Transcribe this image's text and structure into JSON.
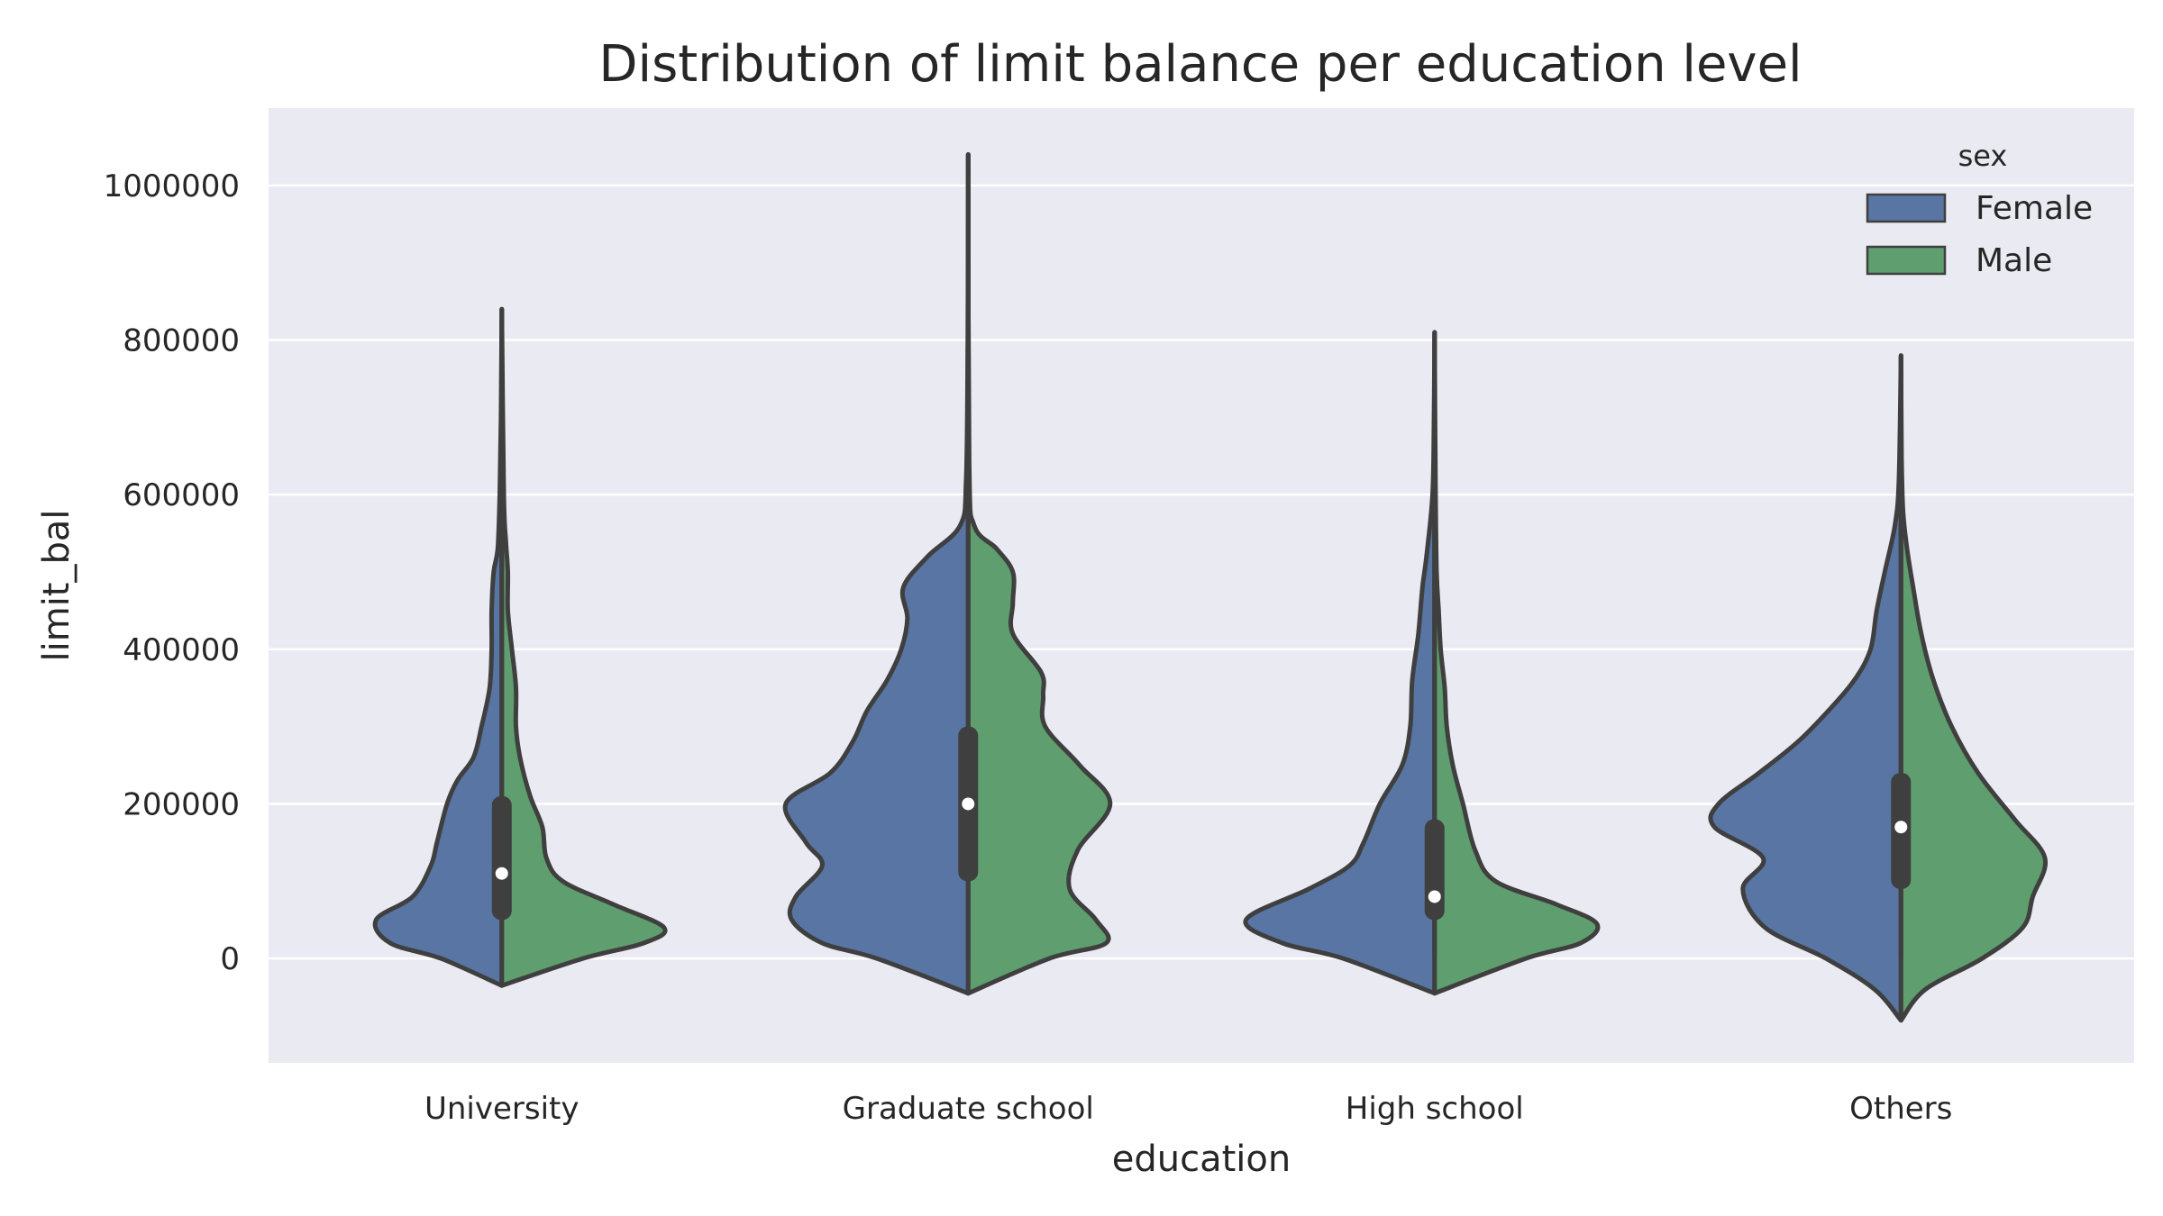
{
  "chart_data": {
    "type": "violin",
    "title": "Distribution of limit balance per education level",
    "xlabel": "education",
    "ylabel": "limit_bal",
    "categories": [
      "University",
      "Graduate school",
      "High school",
      "Others"
    ],
    "yticks": [
      0,
      200000,
      400000,
      600000,
      800000,
      1000000
    ],
    "ylim": [
      -135000,
      1100000
    ],
    "grid": true,
    "split": true,
    "legend": {
      "title": "sex",
      "placement": "top-right",
      "entries": [
        {
          "name": "Female",
          "color": "#5875a4"
        },
        {
          "name": "Male",
          "color": "#5f9e6e"
        }
      ]
    },
    "series": [
      {
        "name": "Female",
        "color": "#5875a4",
        "violins": [
          {
            "category": "University",
            "profile": [
              [
                -35000,
                0.0
              ],
              [
                0,
                0.3
              ],
              [
                20000,
                0.55
              ],
              [
                50000,
                0.62
              ],
              [
                80000,
                0.44
              ],
              [
                120000,
                0.35
              ],
              [
                150000,
                0.32
              ],
              [
                200000,
                0.27
              ],
              [
                230000,
                0.22
              ],
              [
                260000,
                0.14
              ],
              [
                300000,
                0.1
              ],
              [
                350000,
                0.06
              ],
              [
                400000,
                0.05
              ],
              [
                450000,
                0.05
              ],
              [
                500000,
                0.04
              ],
              [
                530000,
                0.02
              ],
              [
                600000,
                0.01
              ],
              [
                700000,
                0.004
              ],
              [
                840000,
                0.0
              ]
            ]
          },
          {
            "category": "Graduate school",
            "profile": [
              [
                -45000,
                0.0
              ],
              [
                0,
                0.45
              ],
              [
                20000,
                0.72
              ],
              [
                50000,
                0.87
              ],
              [
                80000,
                0.85
              ],
              [
                120000,
                0.72
              ],
              [
                150000,
                0.8
              ],
              [
                200000,
                0.9
              ],
              [
                240000,
                0.68
              ],
              [
                280000,
                0.57
              ],
              [
                320000,
                0.5
              ],
              [
                360000,
                0.4
              ],
              [
                400000,
                0.33
              ],
              [
                440000,
                0.3
              ],
              [
                480000,
                0.32
              ],
              [
                520000,
                0.2
              ],
              [
                560000,
                0.04
              ],
              [
                620000,
                0.01
              ],
              [
                800000,
                0.002
              ],
              [
                1040000,
                0.0
              ]
            ]
          },
          {
            "category": "High school",
            "profile": [
              [
                -45000,
                0.0
              ],
              [
                0,
                0.45
              ],
              [
                20000,
                0.75
              ],
              [
                50000,
                0.93
              ],
              [
                90000,
                0.62
              ],
              [
                120000,
                0.42
              ],
              [
                150000,
                0.35
              ],
              [
                200000,
                0.27
              ],
              [
                250000,
                0.16
              ],
              [
                300000,
                0.12
              ],
              [
                360000,
                0.11
              ],
              [
                420000,
                0.08
              ],
              [
                480000,
                0.06
              ],
              [
                520000,
                0.04
              ],
              [
                600000,
                0.01
              ],
              [
                700000,
                0.003
              ],
              [
                810000,
                0.0
              ]
            ]
          },
          {
            "category": "Others",
            "profile": [
              [
                -80000,
                0.0
              ],
              [
                -40000,
                0.13
              ],
              [
                0,
                0.37
              ],
              [
                40000,
                0.67
              ],
              [
                90000,
                0.78
              ],
              [
                130000,
                0.68
              ],
              [
                170000,
                0.92
              ],
              [
                200000,
                0.9
              ],
              [
                240000,
                0.7
              ],
              [
                280000,
                0.51
              ],
              [
                320000,
                0.36
              ],
              [
                360000,
                0.23
              ],
              [
                400000,
                0.15
              ],
              [
                450000,
                0.12
              ],
              [
                500000,
                0.08
              ],
              [
                560000,
                0.03
              ],
              [
                620000,
                0.01
              ],
              [
                780000,
                0.0
              ]
            ]
          }
        ]
      },
      {
        "name": "Male",
        "color": "#5f9e6e",
        "violins": [
          {
            "category": "University",
            "profile": [
              [
                -35000,
                0.0
              ],
              [
                0,
                0.4
              ],
              [
                20000,
                0.7
              ],
              [
                40000,
                0.8
              ],
              [
                70000,
                0.55
              ],
              [
                100000,
                0.3
              ],
              [
                130000,
                0.22
              ],
              [
                170000,
                0.2
              ],
              [
                210000,
                0.14
              ],
              [
                260000,
                0.09
              ],
              [
                300000,
                0.07
              ],
              [
                350000,
                0.07
              ],
              [
                400000,
                0.05
              ],
              [
                450000,
                0.03
              ],
              [
                500000,
                0.03
              ],
              [
                540000,
                0.02
              ],
              [
                600000,
                0.01
              ],
              [
                840000,
                0.0
              ]
            ]
          },
          {
            "category": "Graduate school",
            "profile": [
              [
                -45000,
                0.0
              ],
              [
                0,
                0.4
              ],
              [
                20000,
                0.68
              ],
              [
                50000,
                0.63
              ],
              [
                90000,
                0.5
              ],
              [
                140000,
                0.54
              ],
              [
                200000,
                0.7
              ],
              [
                250000,
                0.55
              ],
              [
                300000,
                0.38
              ],
              [
                340000,
                0.37
              ],
              [
                370000,
                0.36
              ],
              [
                420000,
                0.22
              ],
              [
                460000,
                0.22
              ],
              [
                500000,
                0.22
              ],
              [
                530000,
                0.14
              ],
              [
                560000,
                0.03
              ],
              [
                640000,
                0.005
              ],
              [
                1040000,
                0.0
              ]
            ]
          },
          {
            "category": "High school",
            "profile": [
              [
                -45000,
                0.0
              ],
              [
                0,
                0.45
              ],
              [
                20000,
                0.72
              ],
              [
                45000,
                0.8
              ],
              [
                70000,
                0.6
              ],
              [
                100000,
                0.3
              ],
              [
                140000,
                0.2
              ],
              [
                200000,
                0.14
              ],
              [
                250000,
                0.09
              ],
              [
                300000,
                0.06
              ],
              [
                350000,
                0.05
              ],
              [
                400000,
                0.03
              ],
              [
                450000,
                0.02
              ],
              [
                500000,
                0.01
              ],
              [
                600000,
                0.005
              ],
              [
                810000,
                0.0
              ]
            ]
          },
          {
            "category": "Others",
            "profile": [
              [
                -80000,
                0.0
              ],
              [
                -40000,
                0.12
              ],
              [
                0,
                0.4
              ],
              [
                40000,
                0.6
              ],
              [
                80000,
                0.65
              ],
              [
                130000,
                0.71
              ],
              [
                180000,
                0.56
              ],
              [
                240000,
                0.38
              ],
              [
                300000,
                0.25
              ],
              [
                360000,
                0.16
              ],
              [
                420000,
                0.1
              ],
              [
                480000,
                0.06
              ],
              [
                530000,
                0.03
              ],
              [
                580000,
                0.01
              ],
              [
                650000,
                0.003
              ],
              [
                780000,
                0.0
              ]
            ]
          }
        ]
      }
    ],
    "summary": [
      {
        "category": "University",
        "q1": 50000,
        "median": 110000,
        "q3": 210000
      },
      {
        "category": "Graduate school",
        "q1": 100000,
        "median": 200000,
        "q3": 300000
      },
      {
        "category": "High school",
        "q1": 50000,
        "median": 80000,
        "q3": 180000
      },
      {
        "category": "Others",
        "q1": 90000,
        "median": 170000,
        "q3": 240000
      }
    ]
  }
}
